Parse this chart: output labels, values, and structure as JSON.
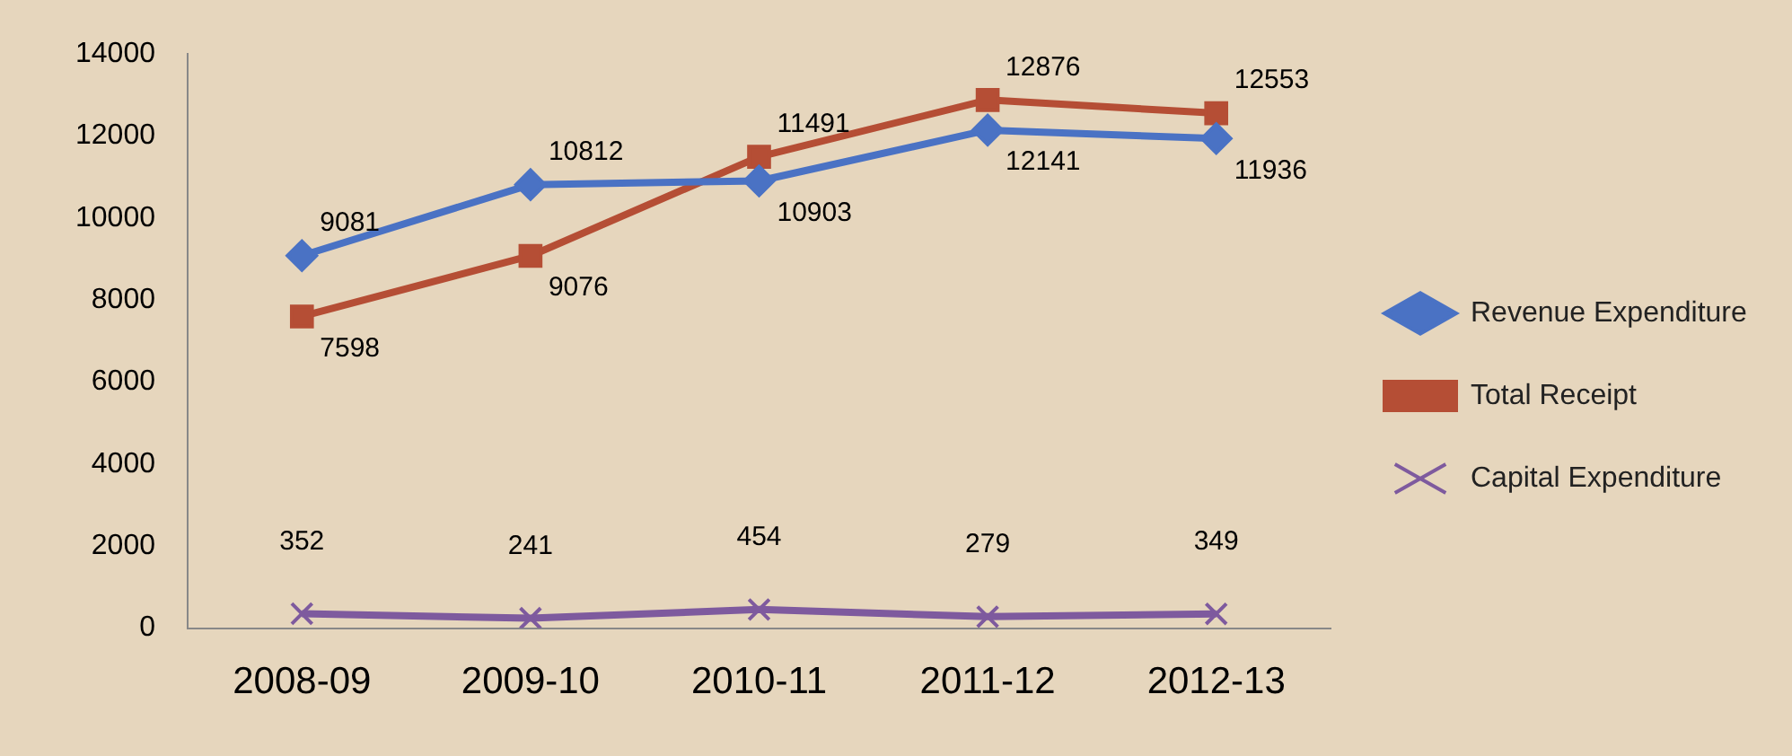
{
  "chart_data": {
    "type": "line",
    "categories": [
      "2008-09",
      "2009-10",
      "2010-11",
      "2011-12",
      "2012-13"
    ],
    "series": [
      {
        "name": "Revenue Expenditure",
        "color": "#4a72c4",
        "marker": "diamond",
        "values": [
          9081,
          10812,
          10903,
          12141,
          11936
        ]
      },
      {
        "name": "Total Receipt",
        "color": "#b54e35",
        "marker": "square",
        "values": [
          7598,
          9076,
          11491,
          12876,
          12553
        ]
      },
      {
        "name": "Capital Expenditure",
        "color": "#7e5a9e",
        "marker": "cross",
        "values": [
          352,
          241,
          454,
          279,
          349
        ]
      }
    ],
    "ylim": [
      0,
      14000
    ],
    "yticks": [
      0,
      2000,
      4000,
      6000,
      8000,
      10000,
      12000,
      14000
    ],
    "grid": false,
    "legend": "right",
    "data_labels": true
  }
}
